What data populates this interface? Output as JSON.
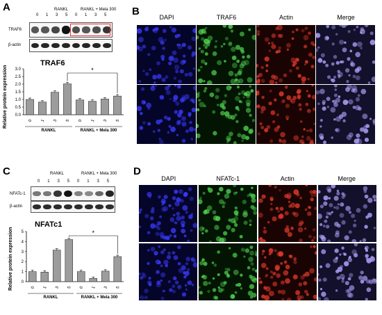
{
  "panels": {
    "A": {
      "letter": "A",
      "blot": {
        "group1": "RANKL",
        "group2": "RANKL + Mela 300",
        "lanes": [
          "0",
          "1",
          "3",
          "5",
          "0",
          "1",
          "3",
          "5"
        ],
        "rows": [
          "TRAF6",
          "β-actin"
        ],
        "traf6_intensity": [
          0.55,
          0.55,
          0.65,
          0.95,
          0.6,
          0.55,
          0.6,
          0.75
        ]
      }
    },
    "B": {
      "letter": "B",
      "columns": [
        "DAPI",
        "TRAF6",
        "Actin",
        "Merge"
      ]
    },
    "C": {
      "letter": "C",
      "blot": {
        "group1": "RANKL",
        "group2": "RANKL + Mela 300",
        "lanes": [
          "0",
          "1",
          "3",
          "5",
          "0",
          "1",
          "3",
          "5"
        ],
        "rows": [
          "NFATc-1",
          "β-actin"
        ],
        "nfat_intensity": [
          0.35,
          0.35,
          0.75,
          0.95,
          0.3,
          0.25,
          0.45,
          0.85
        ]
      }
    },
    "D": {
      "letter": "D",
      "columns": [
        "DAPI",
        "NFATc-1",
        "Actin",
        "Merge"
      ]
    }
  },
  "chart_data": [
    {
      "type": "bar",
      "title": "TRAF6",
      "ylabel": "Relative protein expression",
      "ylim": [
        0,
        3.0
      ],
      "yticks": [
        "0.0",
        "0.5",
        "1.0",
        "1.5",
        "2.0",
        "2.5",
        "3.0"
      ],
      "categories": [
        "0",
        "1",
        "3",
        "5",
        "0",
        "1",
        "3",
        "5"
      ],
      "values": [
        1.0,
        0.83,
        1.47,
        2.02,
        0.97,
        0.88,
        1.03,
        1.22
      ],
      "groups": [
        "RANKL",
        "RANKL + Mela 300"
      ],
      "significance": "*"
    },
    {
      "type": "bar",
      "title": "NFATc1",
      "ylabel": "Relative protein expression",
      "ylim": [
        0,
        5
      ],
      "yticks": [
        "0",
        "1",
        "2",
        "3",
        "4",
        "5"
      ],
      "categories": [
        "0",
        "1",
        "3",
        "5",
        "0",
        "1",
        "3",
        "5"
      ],
      "values": [
        1.0,
        0.95,
        3.15,
        4.2,
        1.0,
        0.32,
        1.05,
        2.5
      ],
      "groups": [
        "RANKL",
        "RANKL + Mela 300"
      ],
      "significance": "*"
    }
  ]
}
